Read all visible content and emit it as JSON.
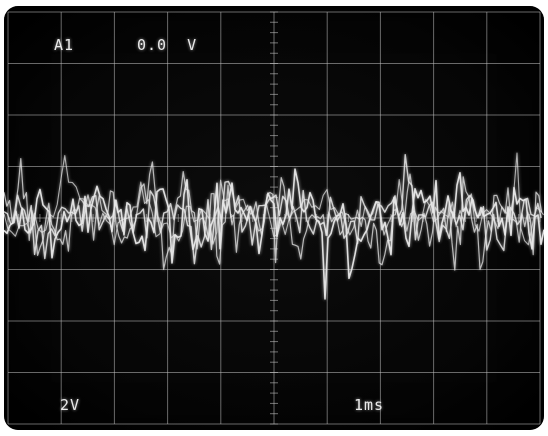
{
  "screen": {
    "channel": "A1",
    "offset": "0.0  V",
    "volts_per_div": "2V",
    "time_per_div": "1ms"
  },
  "colors": {
    "background": "#000000",
    "graticule": "#bdbdbd",
    "trace": "#e8e8e8"
  }
}
